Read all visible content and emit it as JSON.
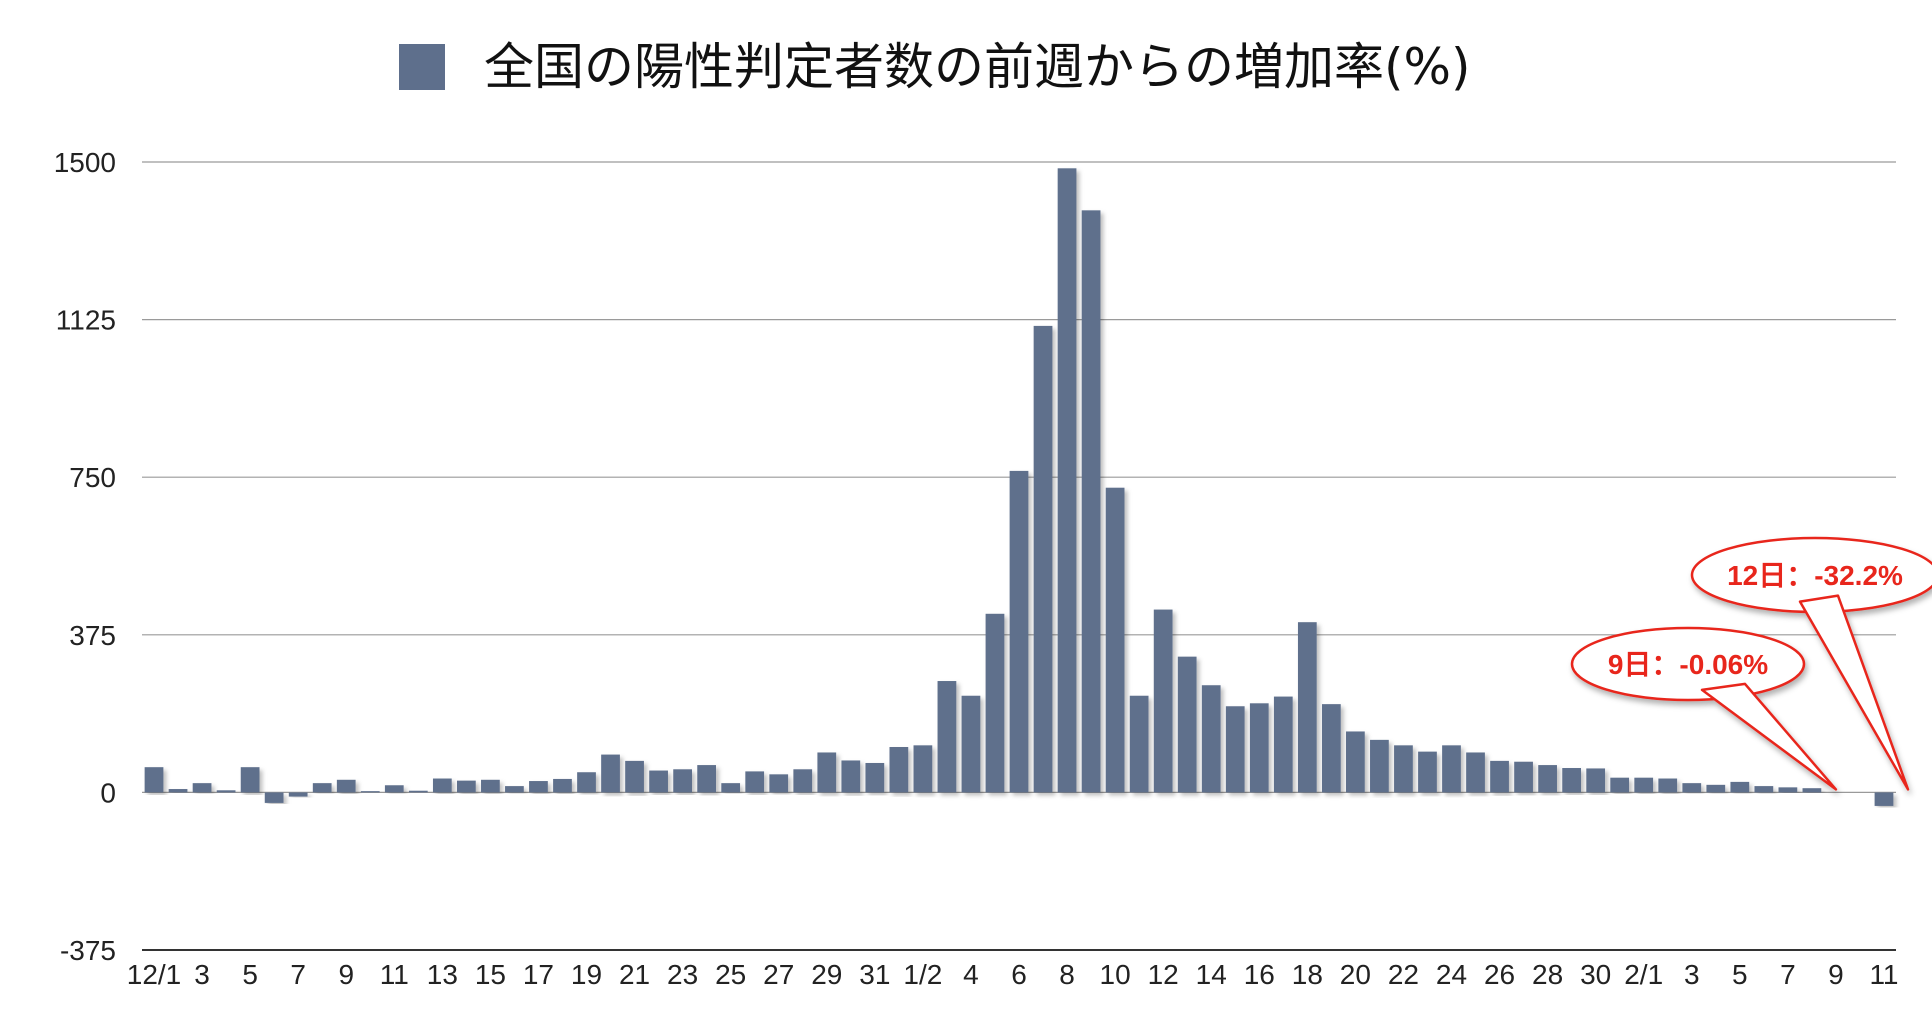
{
  "chart_data": {
    "type": "bar",
    "legend": [
      {
        "name": "全国の陽性判定者数の前週からの増加率(%)",
        "color": "#5e6f8c"
      }
    ],
    "legend_placement": "top-center",
    "bar_color": "#5e6f8c",
    "grid": true,
    "ylim": [
      -375,
      1500
    ],
    "yticks": [
      -375,
      0,
      375,
      750,
      1125,
      1500
    ],
    "xtick_labels": [
      "12/1",
      "3",
      "5",
      "7",
      "9",
      "11",
      "13",
      "15",
      "17",
      "19",
      "21",
      "23",
      "25",
      "27",
      "29",
      "31",
      "1/2",
      "4",
      "6",
      "8",
      "10",
      "12",
      "14",
      "16",
      "18",
      "20",
      "22",
      "24",
      "26",
      "28",
      "30",
      "2/1",
      "3",
      "5",
      "7",
      "9",
      "11"
    ],
    "values": [
      60,
      8,
      22,
      5,
      60,
      -25,
      -10,
      22,
      30,
      3,
      17,
      4,
      33,
      28,
      30,
      15,
      27,
      32,
      48,
      90,
      75,
      52,
      55,
      65,
      22,
      50,
      43,
      55,
      95,
      76,
      70,
      108,
      112,
      265,
      230,
      425,
      765,
      1110,
      1485,
      1385,
      725,
      230,
      435,
      323,
      255,
      205,
      212,
      228,
      405,
      210,
      145,
      125,
      112,
      97,
      112,
      95,
      75,
      73,
      65,
      58,
      57,
      35,
      35,
      33,
      22,
      18,
      25,
      15,
      12,
      10,
      0,
      0,
      -32.2
    ],
    "annotations": [
      {
        "text": "9日：-0.06%",
        "bar_index": 70
      },
      {
        "text": "12日：-32.2%",
        "bar_index": 73
      }
    ]
  }
}
